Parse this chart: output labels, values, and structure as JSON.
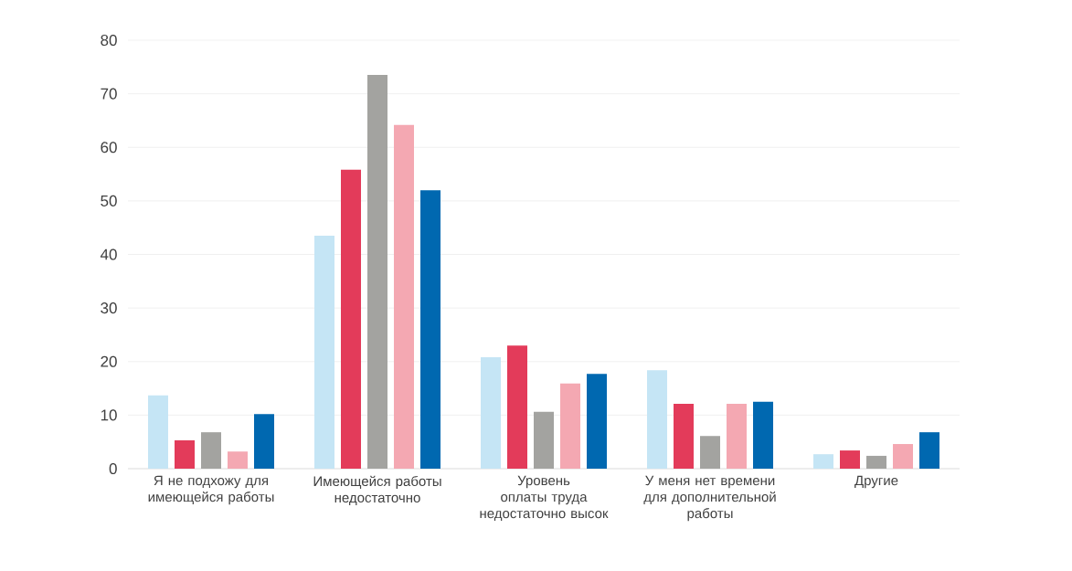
{
  "chart_data": {
    "type": "bar",
    "categories": [
      "Я не подхожу для имеющейся работы",
      "Имеющейся работы недостаточно",
      "Уровень оплаты труда недостаточно высок",
      "У меня нет времени для дополнительной работы",
      "Другие"
    ],
    "series": [
      {
        "color": "#c5e5f5",
        "values": [
          13.7,
          43.5,
          20.8,
          18.4,
          2.7
        ]
      },
      {
        "color": "#e33b5a",
        "values": [
          5.3,
          55.8,
          23,
          12.1,
          3.4
        ]
      },
      {
        "color": "#a3a3a0",
        "values": [
          6.8,
          73.5,
          10.6,
          6.1,
          2.4
        ]
      },
      {
        "color": "#f4a8b2",
        "values": [
          3.2,
          64.2,
          15.9,
          12.1,
          4.6
        ]
      },
      {
        "color": "#0068b0",
        "values": [
          10.2,
          52,
          17.7,
          12.5,
          6.8
        ]
      }
    ],
    "ylim": [
      0,
      80
    ],
    "yticks": [
      0,
      10,
      20,
      30,
      40,
      50,
      60,
      70,
      80
    ],
    "grid": "y"
  }
}
